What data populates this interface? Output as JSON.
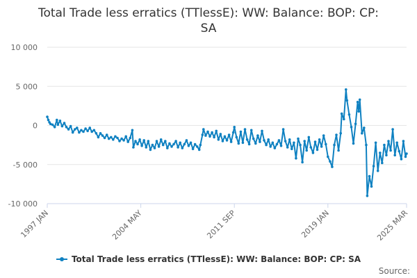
{
  "chart_data": {
    "type": "line",
    "title_line1": "Total Trade less erratics (TTlessE): WW: Balance: BOP: CP:",
    "title_line2": "SA",
    "xlabel": "",
    "ylabel": "",
    "x_tick_labels": [
      "1997 JAN",
      "2004 MAY",
      "2011 SEP",
      "2019 JAN",
      "2025 MAR"
    ],
    "y_ticks": [
      10000,
      5000,
      0,
      -5000,
      -10000
    ],
    "y_tick_labels": [
      "10 000",
      "5 000",
      "0",
      "-5 000",
      "-10 000"
    ],
    "ylim": [
      -10000,
      10000
    ],
    "xlim": [
      "1997-01",
      "2025-03"
    ],
    "grid": true,
    "legend_position": "bottom",
    "series": [
      {
        "name": "Total Trade less erratics (TTlessE): WW: Balance: BOP: CP: SA",
        "color": "#0f81c1",
        "points": [
          [
            "1997-01",
            1100
          ],
          [
            "1997-02",
            700
          ],
          [
            "1997-03",
            400
          ],
          [
            "1997-04",
            200
          ],
          [
            "1997-06",
            100
          ],
          [
            "1997-08",
            -200
          ],
          [
            "1997-10",
            700
          ],
          [
            "1997-11",
            100
          ],
          [
            "1998-01",
            600
          ],
          [
            "1998-03",
            -100
          ],
          [
            "1998-05",
            300
          ],
          [
            "1998-07",
            -200
          ],
          [
            "1998-09",
            -500
          ],
          [
            "1998-11",
            -100
          ],
          [
            "1999-01",
            -900
          ],
          [
            "1999-03",
            -500
          ],
          [
            "1999-05",
            -300
          ],
          [
            "1999-07",
            -900
          ],
          [
            "1999-09",
            -600
          ],
          [
            "1999-11",
            -800
          ],
          [
            "2000-01",
            -400
          ],
          [
            "2000-03",
            -700
          ],
          [
            "2000-05",
            -300
          ],
          [
            "2000-07",
            -800
          ],
          [
            "2000-09",
            -600
          ],
          [
            "2000-11",
            -1000
          ],
          [
            "2001-01",
            -1500
          ],
          [
            "2001-03",
            -1000
          ],
          [
            "2001-05",
            -1300
          ],
          [
            "2001-07",
            -1600
          ],
          [
            "2001-09",
            -1200
          ],
          [
            "2001-11",
            -1700
          ],
          [
            "2002-01",
            -1500
          ],
          [
            "2002-03",
            -1800
          ],
          [
            "2002-05",
            -1400
          ],
          [
            "2002-07",
            -1600
          ],
          [
            "2002-09",
            -2000
          ],
          [
            "2002-11",
            -1700
          ],
          [
            "2003-01",
            -1900
          ],
          [
            "2003-03",
            -1400
          ],
          [
            "2003-05",
            -2100
          ],
          [
            "2003-07",
            -1600
          ],
          [
            "2003-09",
            -600
          ],
          [
            "2003-10",
            -2800
          ],
          [
            "2003-12",
            -2000
          ],
          [
            "2004-02",
            -2400
          ],
          [
            "2004-04",
            -1800
          ],
          [
            "2004-06",
            -2600
          ],
          [
            "2004-08",
            -1900
          ],
          [
            "2004-10",
            -2800
          ],
          [
            "2004-12",
            -2000
          ],
          [
            "2005-02",
            -3100
          ],
          [
            "2005-04",
            -2500
          ],
          [
            "2005-06",
            -2900
          ],
          [
            "2005-08",
            -2000
          ],
          [
            "2005-10",
            -2700
          ],
          [
            "2005-12",
            -1800
          ],
          [
            "2006-02",
            -2500
          ],
          [
            "2006-04",
            -2000
          ],
          [
            "2006-06",
            -2900
          ],
          [
            "2006-08",
            -2300
          ],
          [
            "2006-10",
            -2700
          ],
          [
            "2006-12",
            -2400
          ],
          [
            "2007-02",
            -2000
          ],
          [
            "2007-04",
            -2800
          ],
          [
            "2007-06",
            -2200
          ],
          [
            "2007-08",
            -2900
          ],
          [
            "2007-10",
            -2400
          ],
          [
            "2007-12",
            -1900
          ],
          [
            "2008-02",
            -2600
          ],
          [
            "2008-04",
            -2200
          ],
          [
            "2008-06",
            -3000
          ],
          [
            "2008-08",
            -2400
          ],
          [
            "2008-10",
            -2700
          ],
          [
            "2008-12",
            -3100
          ],
          [
            "2009-01",
            -2500
          ],
          [
            "2009-03",
            -1200
          ],
          [
            "2009-04",
            -500
          ],
          [
            "2009-06",
            -1300
          ],
          [
            "2009-08",
            -800
          ],
          [
            "2009-10",
            -1400
          ],
          [
            "2009-12",
            -900
          ],
          [
            "2010-02",
            -1500
          ],
          [
            "2010-04",
            -700
          ],
          [
            "2010-06",
            -1800
          ],
          [
            "2010-08",
            -1100
          ],
          [
            "2010-10",
            -2000
          ],
          [
            "2010-12",
            -1400
          ],
          [
            "2011-02",
            -1900
          ],
          [
            "2011-04",
            -1200
          ],
          [
            "2011-06",
            -2100
          ],
          [
            "2011-08",
            -900
          ],
          [
            "2011-09",
            -200
          ],
          [
            "2011-11",
            -1500
          ],
          [
            "2012-01",
            -2300
          ],
          [
            "2012-03",
            -800
          ],
          [
            "2012-05",
            -2200
          ],
          [
            "2012-07",
            -500
          ],
          [
            "2012-09",
            -1800
          ],
          [
            "2012-11",
            -2400
          ],
          [
            "2013-01",
            -600
          ],
          [
            "2013-03",
            -1700
          ],
          [
            "2013-05",
            -2300
          ],
          [
            "2013-07",
            -1300
          ],
          [
            "2013-09",
            -2100
          ],
          [
            "2013-11",
            -700
          ],
          [
            "2014-01",
            -1900
          ],
          [
            "2014-03",
            -2500
          ],
          [
            "2014-05",
            -1800
          ],
          [
            "2014-07",
            -2700
          ],
          [
            "2014-09",
            -2200
          ],
          [
            "2014-11",
            -2900
          ],
          [
            "2015-01",
            -2400
          ],
          [
            "2015-03",
            -1900
          ],
          [
            "2015-05",
            -2600
          ],
          [
            "2015-07",
            -500
          ],
          [
            "2015-09",
            -2000
          ],
          [
            "2015-11",
            -2800
          ],
          [
            "2016-01",
            -1800
          ],
          [
            "2016-03",
            -3000
          ],
          [
            "2016-05",
            -2200
          ],
          [
            "2016-07",
            -4200
          ],
          [
            "2016-09",
            -1700
          ],
          [
            "2016-11",
            -2500
          ],
          [
            "2017-01",
            -4700
          ],
          [
            "2017-03",
            -2000
          ],
          [
            "2017-05",
            -3200
          ],
          [
            "2017-07",
            -1500
          ],
          [
            "2017-09",
            -2800
          ],
          [
            "2017-11",
            -3500
          ],
          [
            "2018-01",
            -2100
          ],
          [
            "2018-03",
            -3100
          ],
          [
            "2018-05",
            -1800
          ],
          [
            "2018-07",
            -2700
          ],
          [
            "2018-09",
            -1300
          ],
          [
            "2018-11",
            -2400
          ],
          [
            "2019-01",
            -4000
          ],
          [
            "2019-03",
            -4600
          ],
          [
            "2019-05",
            -5300
          ],
          [
            "2019-07",
            -2500
          ],
          [
            "2019-09",
            -1200
          ],
          [
            "2019-11",
            -3200
          ],
          [
            "2020-01",
            -1000
          ],
          [
            "2020-02",
            1500
          ],
          [
            "2020-04",
            800
          ],
          [
            "2020-06",
            4600
          ],
          [
            "2020-07",
            3200
          ],
          [
            "2020-09",
            1400
          ],
          [
            "2020-11",
            -200
          ],
          [
            "2021-01",
            -2300
          ],
          [
            "2021-03",
            200
          ],
          [
            "2021-05",
            3000
          ],
          [
            "2021-06",
            1800
          ],
          [
            "2021-07",
            3300
          ],
          [
            "2021-09",
            -1000
          ],
          [
            "2021-11",
            -300
          ],
          [
            "2022-01",
            -2500
          ],
          [
            "2022-02",
            -9000
          ],
          [
            "2022-04",
            -6500
          ],
          [
            "2022-06",
            -7800
          ],
          [
            "2022-08",
            -5200
          ],
          [
            "2022-10",
            -2200
          ],
          [
            "2022-12",
            -5800
          ],
          [
            "2023-02",
            -3500
          ],
          [
            "2023-04",
            -4800
          ],
          [
            "2023-06",
            -2500
          ],
          [
            "2023-08",
            -3800
          ],
          [
            "2023-10",
            -2000
          ],
          [
            "2023-12",
            -3200
          ],
          [
            "2024-02",
            -500
          ],
          [
            "2024-04",
            -3800
          ],
          [
            "2024-06",
            -2200
          ],
          [
            "2024-08",
            -3300
          ],
          [
            "2024-10",
            -4300
          ],
          [
            "2024-12",
            -2000
          ],
          [
            "2025-02",
            -4000
          ],
          [
            "2025-03",
            -3600
          ]
        ]
      }
    ]
  },
  "legend": {
    "label": "Total Trade less erratics (TTlessE): WW: Balance: BOP: CP: SA",
    "color": "#0f81c1"
  },
  "footer": {
    "source_label": "Source:"
  }
}
